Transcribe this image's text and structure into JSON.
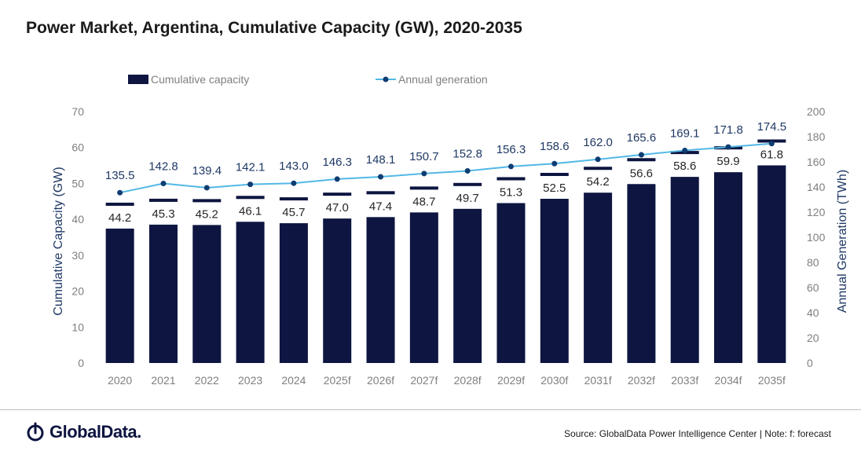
{
  "title": "Power Market, Argentina, Cumulative Capacity (GW), 2020-2035",
  "source": "Source: GlobalData Power Intelligence Center | Note: f: forecast",
  "logo_text": "GlobalData.",
  "colors": {
    "bar": "#0d1540",
    "line": "#52b8e6",
    "marker": "#0e3d73",
    "axis_text": "#7f7f7f",
    "label_text": "#1f3864"
  },
  "chart_data": {
    "type": "bar",
    "categories": [
      "2020",
      "2021",
      "2022",
      "2023",
      "2024",
      "2025f",
      "2026f",
      "2027f",
      "2028f",
      "2029f",
      "2030f",
      "2031f",
      "2032f",
      "2033f",
      "2034f",
      "2035f"
    ],
    "series": [
      {
        "name": "Cumulative capacity",
        "type": "bar",
        "axis": "left",
        "values": [
          44.2,
          45.3,
          45.2,
          46.1,
          45.7,
          47.0,
          47.4,
          48.7,
          49.7,
          51.3,
          52.5,
          54.2,
          56.6,
          58.6,
          59.9,
          61.8
        ]
      },
      {
        "name": "Annual generation",
        "type": "line",
        "axis": "right",
        "values": [
          135.5,
          142.8,
          139.4,
          142.1,
          143.0,
          146.3,
          148.1,
          150.7,
          152.8,
          156.3,
          158.6,
          162.0,
          165.6,
          169.1,
          171.8,
          174.5
        ]
      }
    ],
    "ylabel": "Cumulative Capacity (GW)",
    "y2label": "Annual Generation (TWh)",
    "ylim": [
      0,
      70
    ],
    "yticks": [
      0,
      10,
      20,
      30,
      40,
      50,
      60,
      70
    ],
    "y2lim": [
      0,
      200
    ],
    "y2ticks": [
      0,
      20,
      40,
      60,
      80,
      100,
      120,
      140,
      160,
      180,
      200
    ],
    "grid": false,
    "legend_position": "top"
  }
}
